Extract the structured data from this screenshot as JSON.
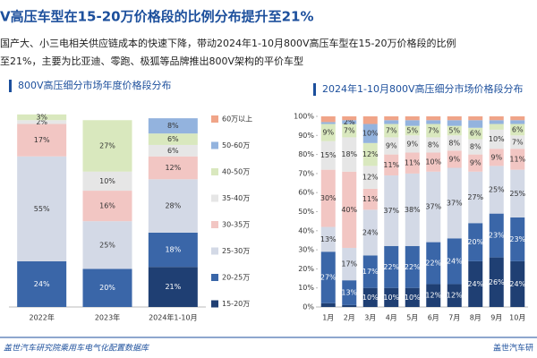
{
  "header": {
    "title": "V高压车型在15-20万价格段的比例分布提升至21%",
    "subtitle": [
      "国产大、小三电相关供应链成本的快速下降，带动2024年1-10月800V高压车型在15-20万价格段的比例",
      "至21%，主要为比亚迪、零跑、极狐等品牌推出800V架构的平价车型"
    ]
  },
  "chart_data": [
    {
      "type": "stacked_bar",
      "title": "800V高压细分市场年度价格段分布",
      "categories": [
        "2022年",
        "2023年",
        "2024年1-10月"
      ],
      "ylim": [
        0,
        100
      ],
      "series": [
        {
          "name": "15-20万",
          "color": "#1f3f73",
          "values": [
            null,
            null,
            21
          ],
          "value_labels": [
            null,
            null,
            "21%"
          ]
        },
        {
          "name": "20-25万",
          "color": "#3a66a8",
          "values": [
            24,
            20,
            18
          ],
          "value_labels": [
            "24%",
            "20%",
            "18%"
          ]
        },
        {
          "name": "25-30万",
          "color": "#d3d9e6",
          "values": [
            55,
            25,
            28
          ],
          "value_labels": [
            "55%",
            "25%",
            "28%"
          ]
        },
        {
          "name": "30-35万",
          "color": "#f2c6c3",
          "values": [
            17,
            16,
            12
          ],
          "value_labels": [
            "17%",
            "16%",
            "12%"
          ]
        },
        {
          "name": "35-40万",
          "color": "#e6e6e6",
          "values": [
            2,
            10,
            6
          ],
          "value_labels": [
            "2%",
            "10%",
            "6%"
          ]
        },
        {
          "name": "40-50万",
          "color": "#d9e8be",
          "values": [
            3,
            27,
            6
          ],
          "value_labels": [
            "3%",
            "27%",
            "6%"
          ]
        },
        {
          "name": "50-60万",
          "color": "#93b3de",
          "values": [
            null,
            null,
            8
          ],
          "value_labels": [
            null,
            null,
            "8%"
          ]
        },
        {
          "name": "60万以上",
          "color": "#f0a488",
          "values": [
            null,
            null,
            null
          ],
          "value_labels": [
            null,
            null,
            null
          ]
        }
      ]
    },
    {
      "type": "stacked_bar",
      "title": "2024年1-10月800V高压细分市场价格段分布",
      "categories": [
        "1月",
        "2月",
        "3月",
        "4月",
        "5月",
        "6月",
        "7月",
        "8月",
        "9月",
        "10月"
      ],
      "ylim": [
        0,
        100
      ],
      "yticks": [
        {
          "value": 0,
          "label": "0%"
        },
        {
          "value": 10,
          "label": "10%"
        },
        {
          "value": 20,
          "label": "20%"
        },
        {
          "value": 30,
          "label": "30%"
        },
        {
          "value": 40,
          "label": "40%"
        },
        {
          "value": 50,
          "label": "50%"
        },
        {
          "value": 60,
          "label": "60%"
        },
        {
          "value": 70,
          "label": "70%"
        },
        {
          "value": 80,
          "label": "80%"
        },
        {
          "value": 90,
          "label": "90%"
        },
        {
          "value": 100,
          "label": "100%"
        }
      ],
      "series": [
        {
          "color": "#1f3f73",
          "values": [
            2,
            1,
            10,
            10,
            10,
            12,
            12,
            24,
            26,
            24
          ],
          "value_labels": [
            null,
            null,
            "10%",
            "10%",
            "10%",
            "12%",
            "12%",
            "24%",
            "26%",
            "24%"
          ]
        },
        {
          "color": "#3a66a8",
          "values": [
            27,
            13,
            17,
            22,
            22,
            22,
            24,
            20,
            23,
            23
          ],
          "value_labels": [
            "27%",
            "13%",
            "17%",
            "22%",
            "22%",
            "22%",
            "24%",
            "20%",
            "23%",
            "23%"
          ]
        },
        {
          "color": "#d3d9e6",
          "values": [
            13,
            17,
            24,
            37,
            38,
            37,
            37,
            27,
            25,
            25
          ],
          "value_labels": [
            "13%",
            "17%",
            "24%",
            "37%",
            "38%",
            "37%",
            "37%",
            "27%",
            "25%",
            "25%"
          ]
        },
        {
          "color": "#f2c6c3",
          "values": [
            30,
            40,
            11,
            11,
            11,
            10,
            9,
            9,
            9,
            11
          ],
          "value_labels": [
            "30%",
            "40%",
            "11%",
            "11%",
            "11%",
            "10%",
            "9%",
            "9%",
            "9%",
            "11%"
          ]
        },
        {
          "color": "#e6e6e6",
          "values": [
            15,
            18,
            12,
            9,
            9,
            8,
            8,
            8,
            10,
            7
          ],
          "value_labels": [
            "15%",
            "18%",
            "12%",
            "9%",
            "9%",
            "8%",
            "8%",
            "8%",
            "10%",
            "7%"
          ]
        },
        {
          "color": "#d9e8be",
          "values": [
            9,
            7,
            12,
            7,
            5,
            7,
            5,
            6,
            3,
            6
          ],
          "value_labels": [
            "9%",
            "7%",
            "12%",
            "7%",
            "5%",
            "7%",
            "5%",
            "6%",
            null,
            "6%"
          ]
        },
        {
          "color": "#93b3de",
          "values": [
            1,
            2,
            10,
            2,
            3,
            2,
            3,
            4,
            2,
            2
          ],
          "value_labels": [
            null,
            "2%",
            "10%",
            null,
            null,
            null,
            null,
            null,
            null,
            null
          ]
        },
        {
          "color": "#f0a488",
          "values": [
            3,
            2,
            4,
            2,
            2,
            2,
            2,
            2,
            2,
            2
          ],
          "value_labels": [
            null,
            null,
            null,
            null,
            null,
            null,
            null,
            null,
            null,
            null
          ]
        }
      ]
    }
  ],
  "footer": {
    "left": "盖世汽车研究院乘用车电气化配置数据库",
    "right": "盖世汽车研"
  }
}
